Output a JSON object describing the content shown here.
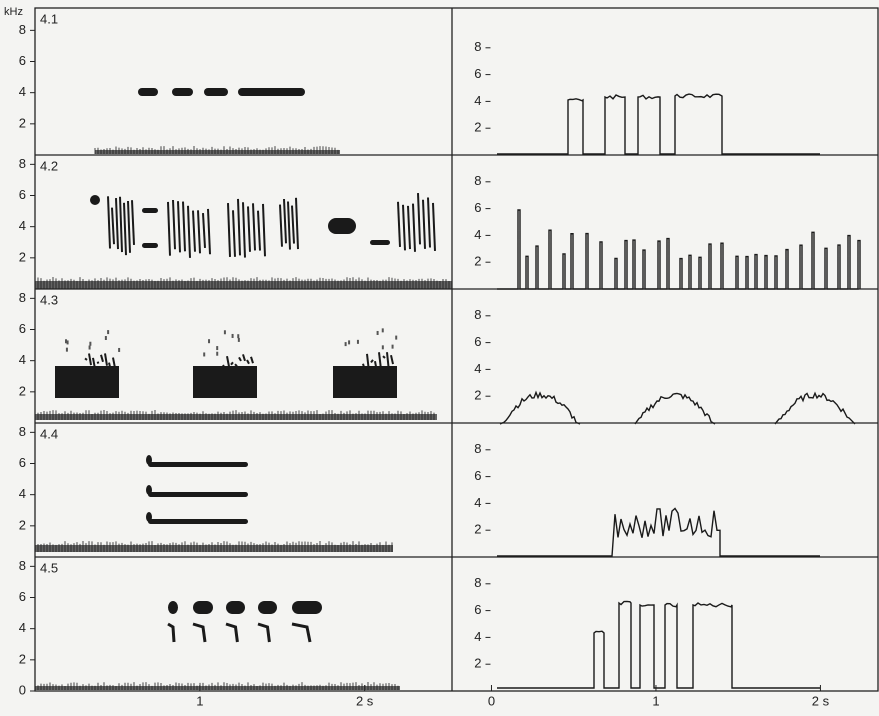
{
  "figure": {
    "y_unit": "kHz",
    "left_xlim": [
      0,
      2.53
    ],
    "left_xticks": [
      1,
      {
        "value": 2,
        "label": "2 s"
      }
    ],
    "right_xlim": [
      -0.24,
      2.35
    ],
    "right_xticks": [
      0,
      1,
      {
        "value": 2,
        "label": "2 s"
      }
    ],
    "left_ylim": [
      0,
      8.6
    ],
    "right_ylim": [
      0,
      10
    ],
    "panels": [
      {
        "label": "4.1",
        "left_yticks": [
          2,
          4,
          6,
          8
        ],
        "right_yticks": [
          2,
          4,
          6,
          8
        ]
      },
      {
        "label": "4.2",
        "left_yticks": [
          2,
          4,
          6,
          8
        ],
        "right_yticks": [
          2,
          4,
          6,
          8
        ]
      },
      {
        "label": "4.3",
        "left_yticks": [
          2,
          4,
          6,
          8
        ],
        "right_yticks": [
          2,
          4,
          6,
          8
        ]
      },
      {
        "label": "4.4",
        "left_yticks": [
          2,
          4,
          6,
          8
        ],
        "right_yticks": [
          2,
          4,
          6,
          8
        ]
      },
      {
        "label": "4.5",
        "left_yticks": [
          0,
          2,
          4,
          6,
          8
        ],
        "right_yticks": [
          2,
          4,
          6,
          8
        ]
      }
    ]
  }
}
